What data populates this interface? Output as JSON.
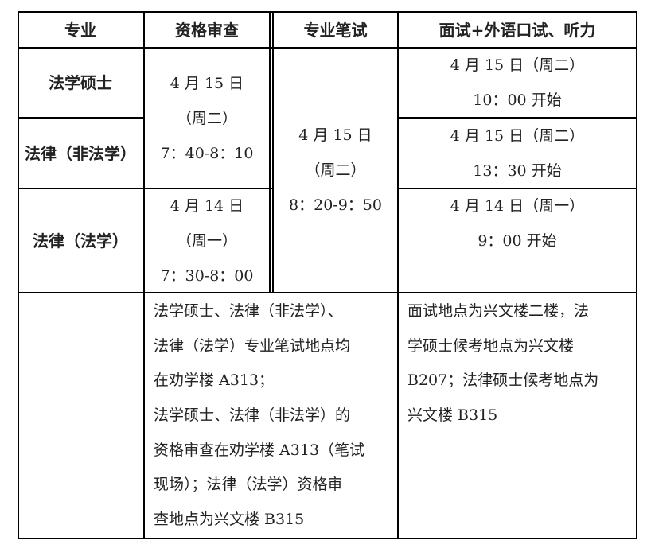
{
  "headers": [
    "专业",
    "资格审查",
    "专业笔试",
    "面试+外语口试、听力"
  ],
  "majors": [
    "法学硕士",
    "法律（非法学）",
    "法律（法学）"
  ],
  "qualification": [
    {
      "lines": [
        "4 月 15 日",
        "（周二）",
        "7：40-8：10"
      ]
    },
    {
      "lines": [
        "4 月 14 日",
        "（周一）",
        "7：30-8：00"
      ]
    }
  ],
  "written": {
    "lines": [
      "4 月 15 日",
      "（周二）",
      "8：20-9：50"
    ]
  },
  "interview": [
    {
      "lines": [
        "4 月 15 日（周二）",
        "10：00 开始"
      ]
    },
    {
      "lines": [
        "4 月 15 日（周二）",
        "13：30 开始"
      ]
    },
    {
      "lines": [
        "4 月 14 日（周一）",
        "9：00 开始"
      ]
    }
  ],
  "notes": {
    "written_qual": [
      "法学硕士、法律（非法学）、",
      "法律（法学）专业笔试地点均",
      "在劝学楼 A313；",
      "法学硕士、法律（非法学）的",
      "资格审查在劝学楼 A313（笔试",
      "现场）；法律（法学）资格审",
      "查地点为兴文楼 B315"
    ],
    "interview": [
      "面试地点为兴文楼二楼，法",
      "学硕士候考地点为兴文楼",
      "B207；法律硕士候考地点为",
      "兴文楼 B315"
    ]
  }
}
